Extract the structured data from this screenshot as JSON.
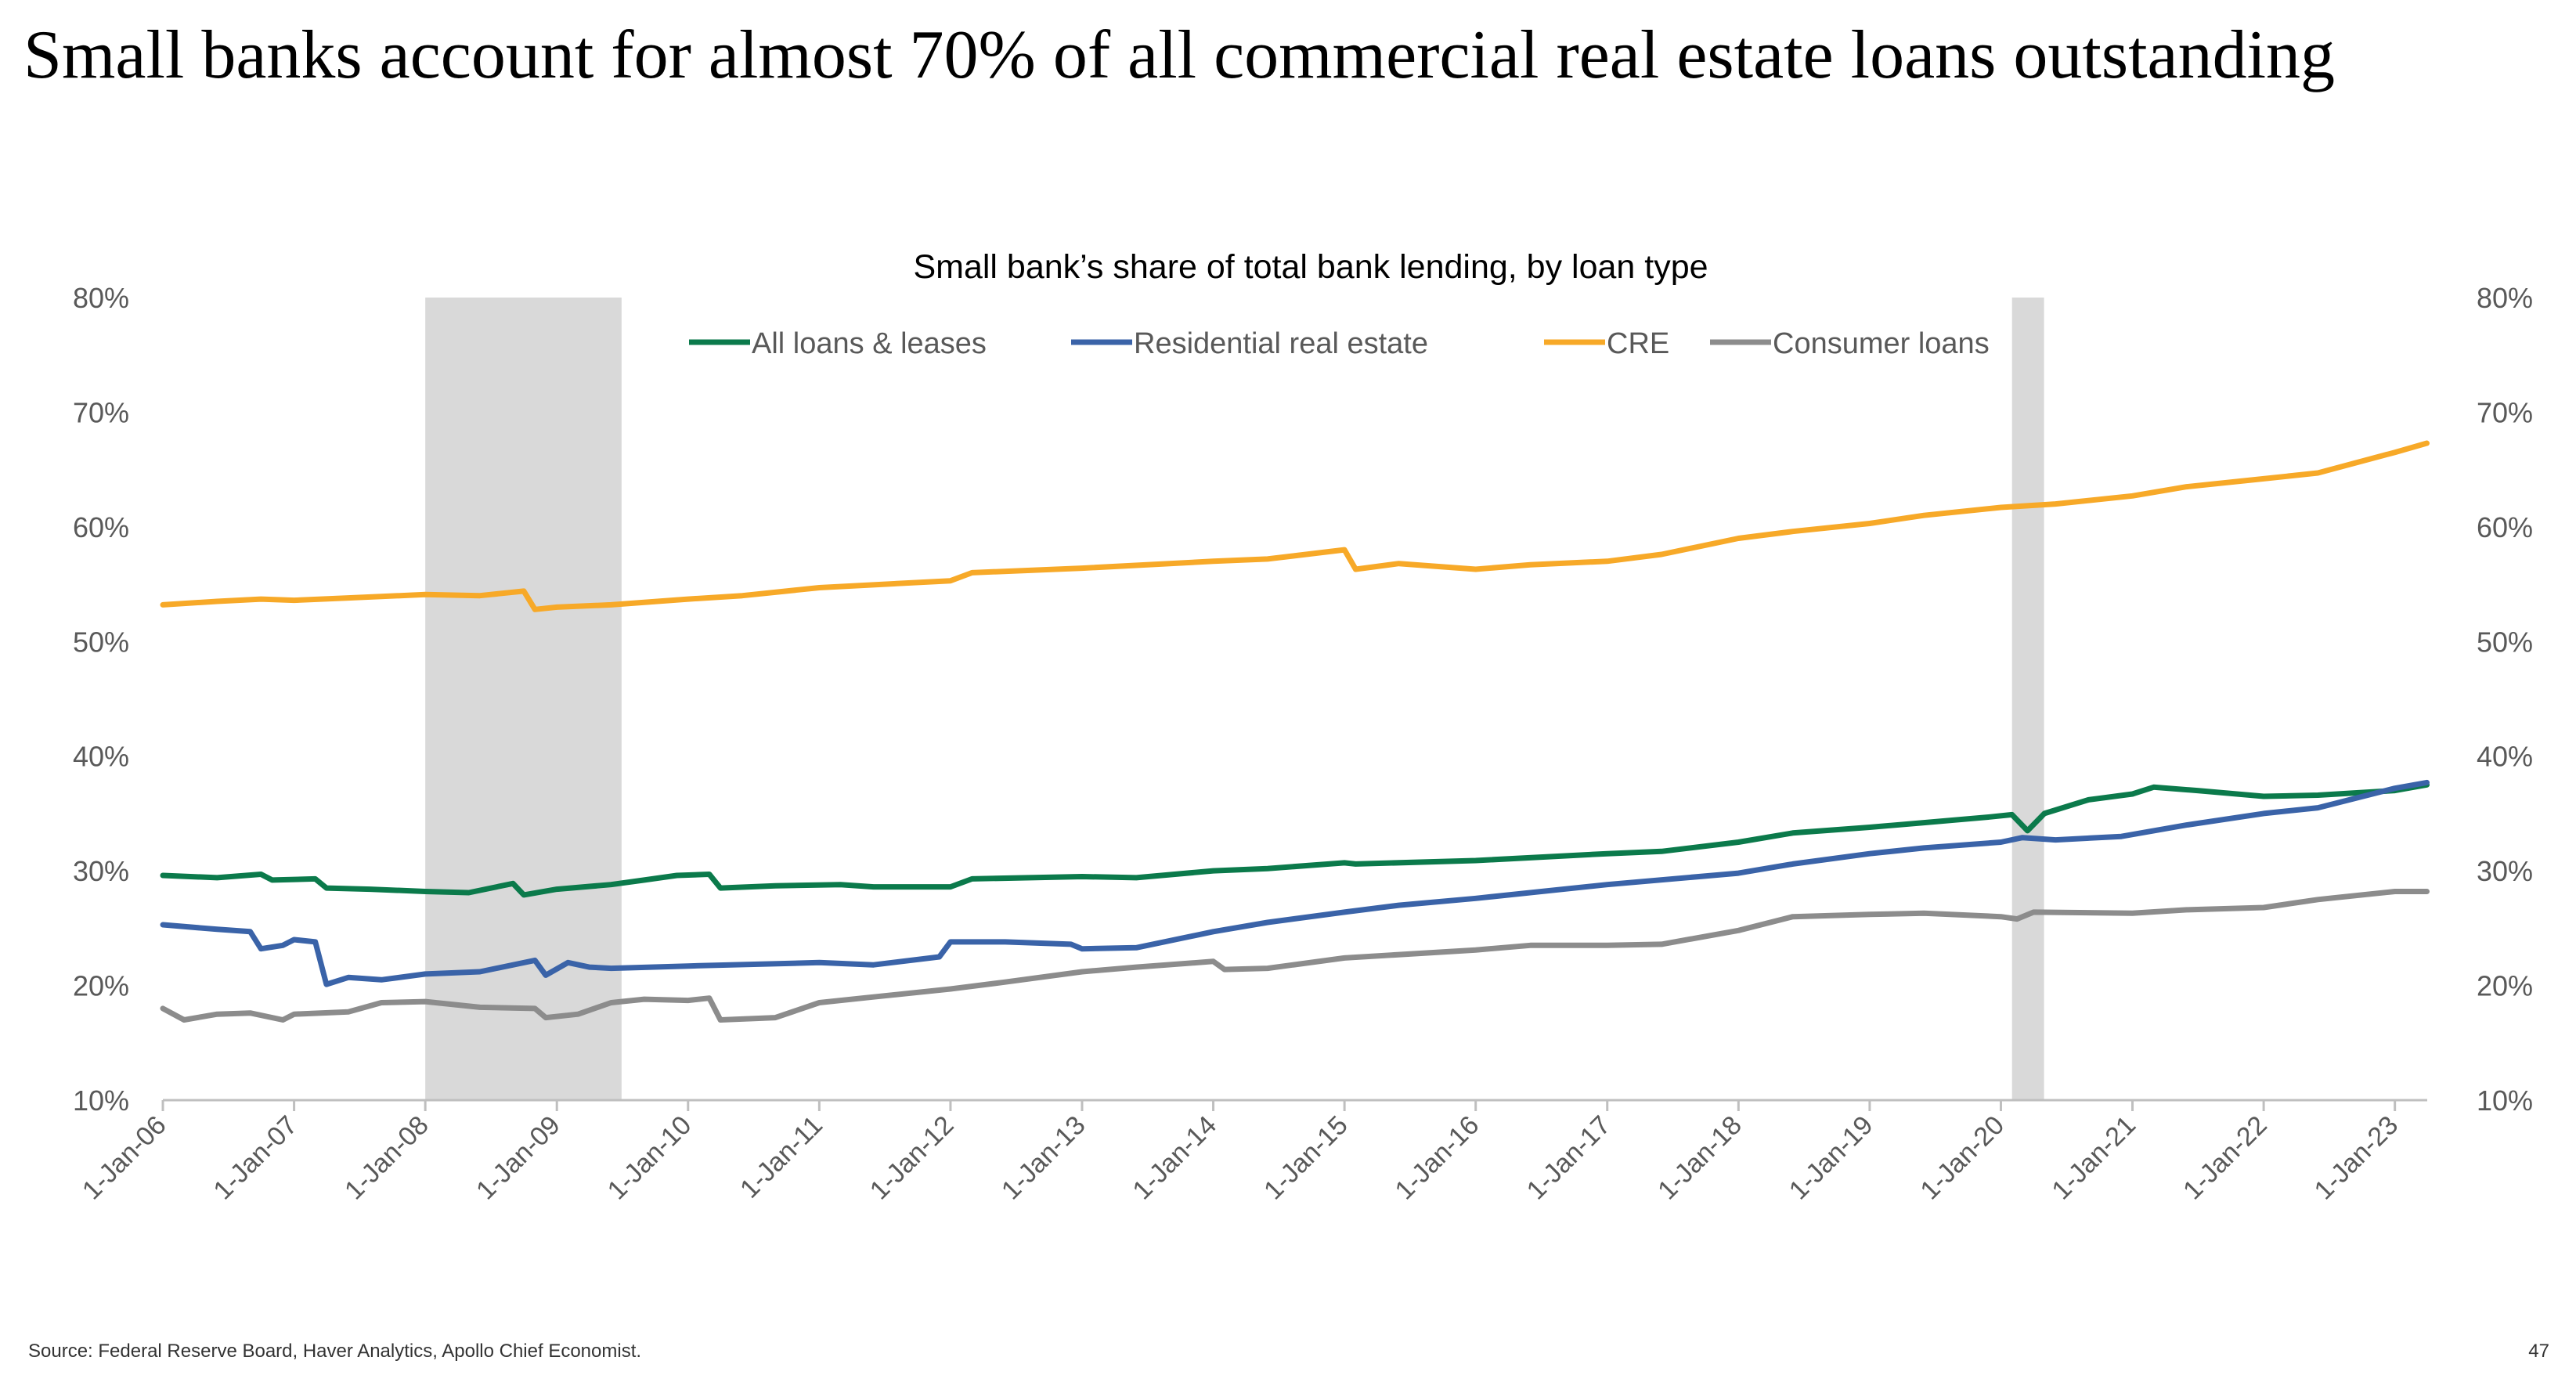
{
  "page": {
    "headline": "Small banks account for almost 70% of all commercial real estate loans outstanding",
    "source": "Source: Federal Reserve Board, Haver Analytics, Apollo Chief Economist.",
    "page_number": "47"
  },
  "chart_data": {
    "type": "line",
    "title": "Small bank’s share of total bank lending, by loan type",
    "xlabel": "",
    "ylabel": "",
    "ylim": [
      0.1,
      0.8
    ],
    "yticks": [
      0.1,
      0.2,
      0.3,
      0.4,
      0.5,
      0.6,
      0.7,
      0.8
    ],
    "ytick_labels": [
      "10%",
      "20%",
      "30%",
      "40%",
      "50%",
      "60%",
      "70%",
      "80%"
    ],
    "secondary_y_axis": true,
    "xlim": [
      "2006-01-01",
      "2023-04-01"
    ],
    "xtick_labels": [
      "1-Jan-06",
      "1-Jan-07",
      "1-Jan-08",
      "1-Jan-09",
      "1-Jan-10",
      "1-Jan-11",
      "1-Jan-12",
      "1-Jan-13",
      "1-Jan-14",
      "1-Jan-15",
      "1-Jan-16",
      "1-Jan-17",
      "1-Jan-18",
      "1-Jan-19",
      "1-Jan-20",
      "1-Jan-21",
      "1-Jan-22",
      "1-Jan-23"
    ],
    "xtick_dates": [
      "2006-01-01",
      "2007-01-01",
      "2008-01-01",
      "2009-01-01",
      "2010-01-01",
      "2011-01-01",
      "2012-01-01",
      "2013-01-01",
      "2014-01-01",
      "2015-01-01",
      "2016-01-01",
      "2017-01-01",
      "2018-01-01",
      "2019-01-01",
      "2020-01-01",
      "2021-01-01",
      "2022-01-01",
      "2023-01-01"
    ],
    "legend_position": "top-center",
    "grid": false,
    "recessions": [
      {
        "start": "2008-01-01",
        "end": "2009-06-30"
      },
      {
        "start": "2020-02-01",
        "end": "2020-04-30"
      }
    ],
    "recession_color": "#d9d9d9",
    "series": [
      {
        "name": "All loans & leases",
        "color": "#0b7a4b",
        "points": [
          [
            "2006-01-01",
            0.296
          ],
          [
            "2006-06-01",
            0.294
          ],
          [
            "2006-10-01",
            0.297
          ],
          [
            "2006-11-01",
            0.292
          ],
          [
            "2007-03-01",
            0.293
          ],
          [
            "2007-04-01",
            0.285
          ],
          [
            "2007-08-01",
            0.284
          ],
          [
            "2008-01-01",
            0.282
          ],
          [
            "2008-05-01",
            0.281
          ],
          [
            "2008-09-01",
            0.289
          ],
          [
            "2008-10-01",
            0.279
          ],
          [
            "2009-01-01",
            0.284
          ],
          [
            "2009-06-01",
            0.288
          ],
          [
            "2009-09-01",
            0.292
          ],
          [
            "2009-12-01",
            0.296
          ],
          [
            "2010-03-01",
            0.297
          ],
          [
            "2010-04-01",
            0.285
          ],
          [
            "2010-09-01",
            0.287
          ],
          [
            "2011-03-01",
            0.288
          ],
          [
            "2011-06-01",
            0.286
          ],
          [
            "2012-01-01",
            0.286
          ],
          [
            "2012-03-01",
            0.293
          ],
          [
            "2013-01-01",
            0.295
          ],
          [
            "2013-06-01",
            0.294
          ],
          [
            "2014-01-01",
            0.3
          ],
          [
            "2014-06-01",
            0.302
          ],
          [
            "2015-01-01",
            0.307
          ],
          [
            "2015-02-01",
            0.306
          ],
          [
            "2016-01-01",
            0.309
          ],
          [
            "2017-01-01",
            0.315
          ],
          [
            "2017-06-01",
            0.317
          ],
          [
            "2018-01-01",
            0.325
          ],
          [
            "2018-06-01",
            0.333
          ],
          [
            "2019-01-01",
            0.338
          ],
          [
            "2019-06-01",
            0.342
          ],
          [
            "2019-12-01",
            0.347
          ],
          [
            "2020-02-01",
            0.349
          ],
          [
            "2020-03-15",
            0.335
          ],
          [
            "2020-05-01",
            0.35
          ],
          [
            "2020-09-01",
            0.362
          ],
          [
            "2021-01-01",
            0.367
          ],
          [
            "2021-03-01",
            0.373
          ],
          [
            "2021-07-01",
            0.37
          ],
          [
            "2022-01-01",
            0.365
          ],
          [
            "2022-06-01",
            0.366
          ],
          [
            "2023-01-01",
            0.37
          ],
          [
            "2023-03-31",
            0.375
          ]
        ]
      },
      {
        "name": "Residential real estate",
        "color": "#3a63a8",
        "points": [
          [
            "2006-01-01",
            0.253
          ],
          [
            "2006-06-01",
            0.249
          ],
          [
            "2006-09-01",
            0.247
          ],
          [
            "2006-10-01",
            0.232
          ],
          [
            "2006-12-01",
            0.235
          ],
          [
            "2007-01-01",
            0.24
          ],
          [
            "2007-03-01",
            0.238
          ],
          [
            "2007-04-01",
            0.201
          ],
          [
            "2007-06-01",
            0.207
          ],
          [
            "2007-09-01",
            0.205
          ],
          [
            "2008-01-01",
            0.21
          ],
          [
            "2008-06-01",
            0.212
          ],
          [
            "2008-11-01",
            0.222
          ],
          [
            "2008-12-01",
            0.209
          ],
          [
            "2009-02-01",
            0.22
          ],
          [
            "2009-04-01",
            0.216
          ],
          [
            "2009-06-01",
            0.215
          ],
          [
            "2010-01-01",
            0.217
          ],
          [
            "2011-01-01",
            0.22
          ],
          [
            "2011-06-01",
            0.218
          ],
          [
            "2011-12-01",
            0.225
          ],
          [
            "2012-01-01",
            0.238
          ],
          [
            "2012-06-01",
            0.238
          ],
          [
            "2012-12-01",
            0.236
          ],
          [
            "2013-01-01",
            0.232
          ],
          [
            "2013-06-01",
            0.233
          ],
          [
            "2014-01-01",
            0.247
          ],
          [
            "2014-06-01",
            0.255
          ],
          [
            "2015-01-01",
            0.264
          ],
          [
            "2015-06-01",
            0.27
          ],
          [
            "2016-01-01",
            0.276
          ],
          [
            "2017-01-01",
            0.288
          ],
          [
            "2018-01-01",
            0.298
          ],
          [
            "2018-06-01",
            0.306
          ],
          [
            "2019-01-01",
            0.315
          ],
          [
            "2019-06-01",
            0.32
          ],
          [
            "2020-01-01",
            0.325
          ],
          [
            "2020-03-01",
            0.329
          ],
          [
            "2020-06-01",
            0.327
          ],
          [
            "2020-12-01",
            0.33
          ],
          [
            "2021-06-01",
            0.34
          ],
          [
            "2022-01-01",
            0.35
          ],
          [
            "2022-06-01",
            0.355
          ],
          [
            "2023-01-01",
            0.372
          ],
          [
            "2023-03-31",
            0.377
          ]
        ]
      },
      {
        "name": "CRE",
        "color": "#f7a928",
        "points": [
          [
            "2006-01-01",
            0.532
          ],
          [
            "2006-06-01",
            0.535
          ],
          [
            "2006-10-01",
            0.537
          ],
          [
            "2007-01-01",
            0.536
          ],
          [
            "2007-06-01",
            0.538
          ],
          [
            "2008-01-01",
            0.541
          ],
          [
            "2008-06-01",
            0.54
          ],
          [
            "2008-10-01",
            0.544
          ],
          [
            "2008-11-01",
            0.528
          ],
          [
            "2009-01-01",
            0.53
          ],
          [
            "2009-06-01",
            0.532
          ],
          [
            "2010-01-01",
            0.537
          ],
          [
            "2010-06-01",
            0.54
          ],
          [
            "2011-01-01",
            0.547
          ],
          [
            "2012-01-01",
            0.553
          ],
          [
            "2012-03-01",
            0.56
          ],
          [
            "2013-01-01",
            0.564
          ],
          [
            "2014-01-01",
            0.57
          ],
          [
            "2014-06-01",
            0.572
          ],
          [
            "2015-01-01",
            0.58
          ],
          [
            "2015-02-01",
            0.563
          ],
          [
            "2015-06-01",
            0.568
          ],
          [
            "2016-01-01",
            0.563
          ],
          [
            "2016-06-01",
            0.567
          ],
          [
            "2017-01-01",
            0.57
          ],
          [
            "2017-06-01",
            0.576
          ],
          [
            "2018-01-01",
            0.59
          ],
          [
            "2018-06-01",
            0.596
          ],
          [
            "2019-01-01",
            0.603
          ],
          [
            "2019-06-01",
            0.61
          ],
          [
            "2020-01-01",
            0.617
          ],
          [
            "2020-06-01",
            0.62
          ],
          [
            "2021-01-01",
            0.627
          ],
          [
            "2021-06-01",
            0.635
          ],
          [
            "2022-01-01",
            0.642
          ],
          [
            "2022-06-01",
            0.647
          ],
          [
            "2023-01-01",
            0.665
          ],
          [
            "2023-03-31",
            0.673
          ]
        ]
      },
      {
        "name": "Consumer loans",
        "color": "#8c8c8c",
        "points": [
          [
            "2006-01-01",
            0.18
          ],
          [
            "2006-03-01",
            0.17
          ],
          [
            "2006-06-01",
            0.175
          ],
          [
            "2006-09-01",
            0.176
          ],
          [
            "2006-12-01",
            0.17
          ],
          [
            "2007-01-01",
            0.175
          ],
          [
            "2007-06-01",
            0.177
          ],
          [
            "2007-09-01",
            0.185
          ],
          [
            "2008-01-01",
            0.186
          ],
          [
            "2008-06-01",
            0.181
          ],
          [
            "2008-11-01",
            0.18
          ],
          [
            "2008-12-01",
            0.172
          ],
          [
            "2009-03-01",
            0.175
          ],
          [
            "2009-06-01",
            0.185
          ],
          [
            "2009-09-01",
            0.188
          ],
          [
            "2010-01-01",
            0.187
          ],
          [
            "2010-03-01",
            0.189
          ],
          [
            "2010-04-01",
            0.17
          ],
          [
            "2010-09-01",
            0.172
          ],
          [
            "2011-01-01",
            0.185
          ],
          [
            "2011-06-01",
            0.19
          ],
          [
            "2012-01-01",
            0.197
          ],
          [
            "2012-06-01",
            0.203
          ],
          [
            "2013-01-01",
            0.212
          ],
          [
            "2013-06-01",
            0.216
          ],
          [
            "2014-01-01",
            0.221
          ],
          [
            "2014-02-01",
            0.214
          ],
          [
            "2014-06-01",
            0.215
          ],
          [
            "2015-01-01",
            0.224
          ],
          [
            "2016-01-01",
            0.231
          ],
          [
            "2016-06-01",
            0.235
          ],
          [
            "2017-01-01",
            0.235
          ],
          [
            "2017-06-01",
            0.236
          ],
          [
            "2018-01-01",
            0.248
          ],
          [
            "2018-06-01",
            0.26
          ],
          [
            "2019-01-01",
            0.262
          ],
          [
            "2019-06-01",
            0.263
          ],
          [
            "2020-01-01",
            0.26
          ],
          [
            "2020-02-15",
            0.258
          ],
          [
            "2020-04-01",
            0.264
          ],
          [
            "2021-01-01",
            0.263
          ],
          [
            "2021-06-01",
            0.266
          ],
          [
            "2022-01-01",
            0.268
          ],
          [
            "2022-06-01",
            0.275
          ],
          [
            "2023-01-01",
            0.282
          ],
          [
            "2023-03-31",
            0.282
          ]
        ]
      }
    ]
  }
}
